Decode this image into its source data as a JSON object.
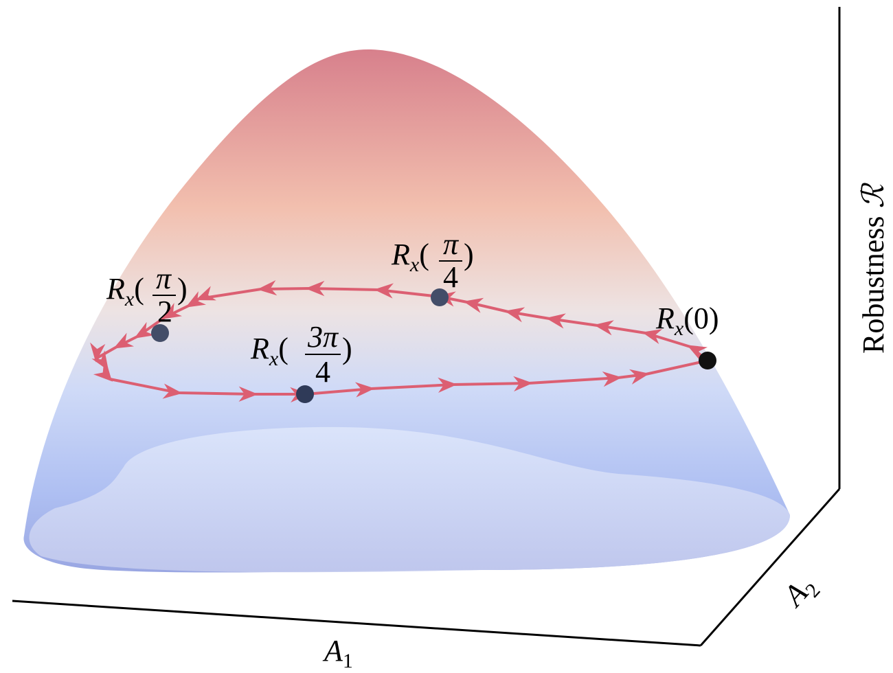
{
  "axes": {
    "x": {
      "main": "A",
      "sub": "1"
    },
    "y": {
      "main": "A",
      "sub": "2"
    },
    "z": {
      "text": "Robustness ",
      "symbol": "ℛ"
    }
  },
  "points": [
    {
      "main": "R",
      "sub": "x",
      "open": "(",
      "num": "π",
      "den": "2",
      "close": ")"
    },
    {
      "main": "R",
      "sub": "x",
      "open": "(",
      "num": "π",
      "den": "4",
      "close": ")"
    },
    {
      "main": "R",
      "sub": "x",
      "open": "(",
      "num": "3π",
      "den": "4",
      "close": ")"
    },
    {
      "main": "R",
      "sub": "x",
      "arg": "(0)"
    }
  ]
}
